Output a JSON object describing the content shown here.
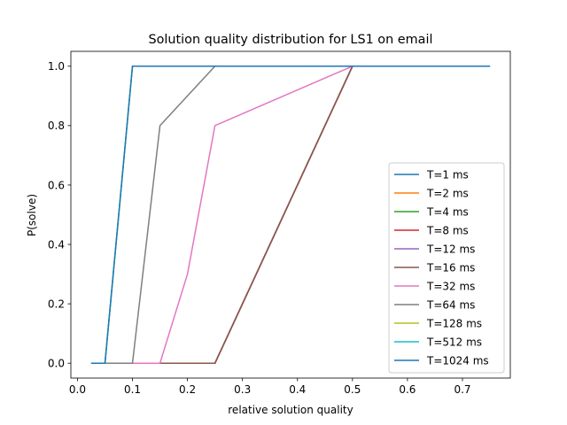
{
  "chart_data": {
    "type": "line",
    "title": "Solution quality distribution for LS1 on email",
    "xlabel": "relative solution quality",
    "ylabel": "P(solve)",
    "xlim": [
      -0.012,
      0.787
    ],
    "ylim": [
      -0.05,
      1.05
    ],
    "xticks": [
      0.0,
      0.1,
      0.2,
      0.3,
      0.4,
      0.5,
      0.6,
      0.7
    ],
    "xtick_labels": [
      "0.0",
      "0.1",
      "0.2",
      "0.3",
      "0.4",
      "0.5",
      "0.6",
      "0.7"
    ],
    "yticks": [
      0.0,
      0.2,
      0.4,
      0.6,
      0.8,
      1.0
    ],
    "ytick_labels": [
      "0.0",
      "0.2",
      "0.4",
      "0.6",
      "0.8",
      "1.0"
    ],
    "grid": false,
    "legend_position": "lower right",
    "series": [
      {
        "name": "T=1 ms",
        "color": "#1f77b4",
        "x": [
          0.025,
          0.05,
          0.25,
          0.5,
          0.75
        ],
        "y": [
          0.0,
          0.0,
          0.0,
          1.0,
          1.0
        ]
      },
      {
        "name": "T=2 ms",
        "color": "#ff7f0e",
        "x": [
          0.025,
          0.05,
          0.25,
          0.5,
          0.75
        ],
        "y": [
          0.0,
          0.0,
          0.0,
          1.0,
          1.0
        ]
      },
      {
        "name": "T=4 ms",
        "color": "#2ca02c",
        "x": [
          0.025,
          0.05,
          0.25,
          0.5,
          0.75
        ],
        "y": [
          0.0,
          0.0,
          0.0,
          1.0,
          1.0
        ]
      },
      {
        "name": "T=8 ms",
        "color": "#d62728",
        "x": [
          0.025,
          0.05,
          0.25,
          0.5,
          0.75
        ],
        "y": [
          0.0,
          0.0,
          0.0,
          1.0,
          1.0
        ]
      },
      {
        "name": "T=12 ms",
        "color": "#9467bd",
        "x": [
          0.025,
          0.05,
          0.25,
          0.5,
          0.75
        ],
        "y": [
          0.0,
          0.0,
          0.0,
          1.0,
          1.0
        ]
      },
      {
        "name": "T=16 ms",
        "color": "#8c564b",
        "x": [
          0.025,
          0.05,
          0.25,
          0.5,
          0.75
        ],
        "y": [
          0.0,
          0.0,
          0.0,
          1.0,
          1.0
        ]
      },
      {
        "name": "T=32 ms",
        "color": "#e377c2",
        "x": [
          0.025,
          0.05,
          0.15,
          0.2,
          0.25,
          0.5,
          0.75
        ],
        "y": [
          0.0,
          0.0,
          0.0,
          0.3,
          0.8,
          1.0,
          1.0
        ]
      },
      {
        "name": "T=64 ms",
        "color": "#7f7f7f",
        "x": [
          0.025,
          0.05,
          0.1,
          0.15,
          0.25,
          0.5,
          0.75
        ],
        "y": [
          0.0,
          0.0,
          0.0,
          0.8,
          1.0,
          1.0,
          1.0
        ]
      },
      {
        "name": "T=128 ms",
        "color": "#bcbd22",
        "x": [
          0.025,
          0.05,
          0.1,
          0.25,
          0.5,
          0.75
        ],
        "y": [
          0.0,
          0.0,
          1.0,
          1.0,
          1.0,
          1.0
        ]
      },
      {
        "name": "T=512 ms",
        "color": "#17becf",
        "x": [
          0.025,
          0.05,
          0.1,
          0.25,
          0.5,
          0.75
        ],
        "y": [
          0.0,
          0.0,
          1.0,
          1.0,
          1.0,
          1.0
        ]
      },
      {
        "name": "T=1024 ms",
        "color": "#1f77b4",
        "x": [
          0.025,
          0.05,
          0.1,
          0.25,
          0.5,
          0.75
        ],
        "y": [
          0.0,
          0.0,
          1.0,
          1.0,
          1.0,
          1.0
        ]
      }
    ]
  }
}
